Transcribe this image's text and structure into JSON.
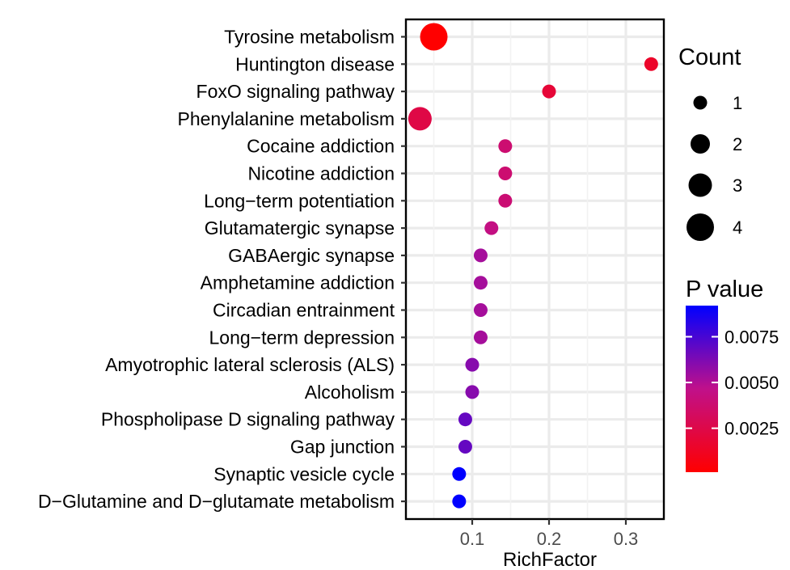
{
  "chart_data": {
    "type": "scatter",
    "title": "",
    "xlabel": "RichFactor",
    "ylabel": "",
    "xlim": [
      0.02,
      0.345
    ],
    "xticks": [
      0.1,
      0.2,
      0.3
    ],
    "xtick_labels": [
      "0.1",
      "0.2",
      "0.3"
    ],
    "grid": true,
    "points": [
      {
        "term": "Tyrosine metabolism",
        "rich_factor": 0.05,
        "count": 4,
        "p_value": 0.0001
      },
      {
        "term": "Huntington disease",
        "rich_factor": 0.333,
        "count": 1,
        "p_value": 0.0015
      },
      {
        "term": "FoxO signaling pathway",
        "rich_factor": 0.2,
        "count": 1,
        "p_value": 0.0019
      },
      {
        "term": "Phenylalanine metabolism",
        "rich_factor": 0.032,
        "count": 3,
        "p_value": 0.0024
      },
      {
        "term": "Cocaine addiction",
        "rich_factor": 0.143,
        "count": 1,
        "p_value": 0.0038
      },
      {
        "term": "Nicotine addiction",
        "rich_factor": 0.143,
        "count": 1,
        "p_value": 0.0038
      },
      {
        "term": "Long−term potentiation",
        "rich_factor": 0.143,
        "count": 1,
        "p_value": 0.0039
      },
      {
        "term": "Glutamatergic synapse",
        "rich_factor": 0.125,
        "count": 1,
        "p_value": 0.0044
      },
      {
        "term": "GABAergic synapse",
        "rich_factor": 0.111,
        "count": 1,
        "p_value": 0.0053
      },
      {
        "term": "Amphetamine addiction",
        "rich_factor": 0.111,
        "count": 1,
        "p_value": 0.0053
      },
      {
        "term": "Circadian entrainment",
        "rich_factor": 0.111,
        "count": 1,
        "p_value": 0.0053
      },
      {
        "term": "Long−term depression",
        "rich_factor": 0.111,
        "count": 1,
        "p_value": 0.0053
      },
      {
        "term": "Amyotrophic lateral sclerosis (ALS)",
        "rich_factor": 0.1,
        "count": 1,
        "p_value": 0.006
      },
      {
        "term": "Alcoholism",
        "rich_factor": 0.1,
        "count": 1,
        "p_value": 0.006
      },
      {
        "term": "Phospholipase D signaling pathway",
        "rich_factor": 0.091,
        "count": 1,
        "p_value": 0.0068
      },
      {
        "term": "Gap junction",
        "rich_factor": 0.091,
        "count": 1,
        "p_value": 0.0068
      },
      {
        "term": "Synaptic vesicle cycle",
        "rich_factor": 0.083,
        "count": 1,
        "p_value": 0.0092
      },
      {
        "term": "D−Glutamine and D−glutamate metabolism",
        "rich_factor": 0.083,
        "count": 1,
        "p_value": 0.0092
      }
    ],
    "size_legend": {
      "title": "Count",
      "values": [
        1,
        2,
        3,
        4
      ],
      "labels": [
        "1",
        "2",
        "3",
        "4"
      ]
    },
    "color_legend": {
      "title": "P value",
      "low_color": "#ff0000",
      "high_color": "#0000ff",
      "range": [
        0.0001,
        0.0092
      ],
      "ticks": [
        0.0025,
        0.005,
        0.0075
      ],
      "tick_labels": [
        "0.0025",
        "0.0050",
        "0.0075"
      ]
    }
  }
}
